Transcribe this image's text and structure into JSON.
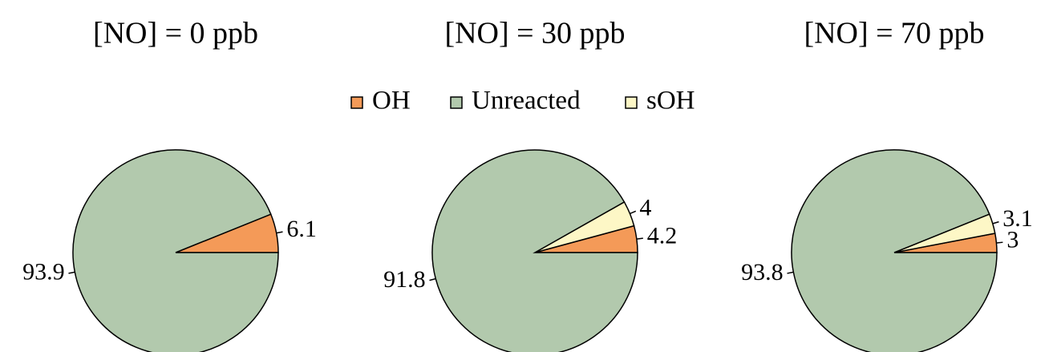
{
  "chart_data": [
    {
      "type": "pie",
      "title": "[NO] =  0 ppb",
      "categories": [
        "OH",
        "Unreacted"
      ],
      "values": [
        6.1,
        93.9
      ]
    },
    {
      "type": "pie",
      "title": "[NO] = 30 ppb",
      "categories": [
        "OH",
        "sOH",
        "Unreacted"
      ],
      "values": [
        4.2,
        4.0,
        91.8
      ]
    },
    {
      "type": "pie",
      "title": "[NO] = 70 ppb",
      "categories": [
        "OH",
        "sOH",
        "Unreacted"
      ],
      "values": [
        3.0,
        3.1,
        93.8
      ]
    }
  ],
  "legend": {
    "names": [
      "OH",
      "Unreacted",
      "sOH"
    ],
    "colors": [
      "#f49a58",
      "#b2c9ad",
      "#fdf7c6"
    ]
  }
}
